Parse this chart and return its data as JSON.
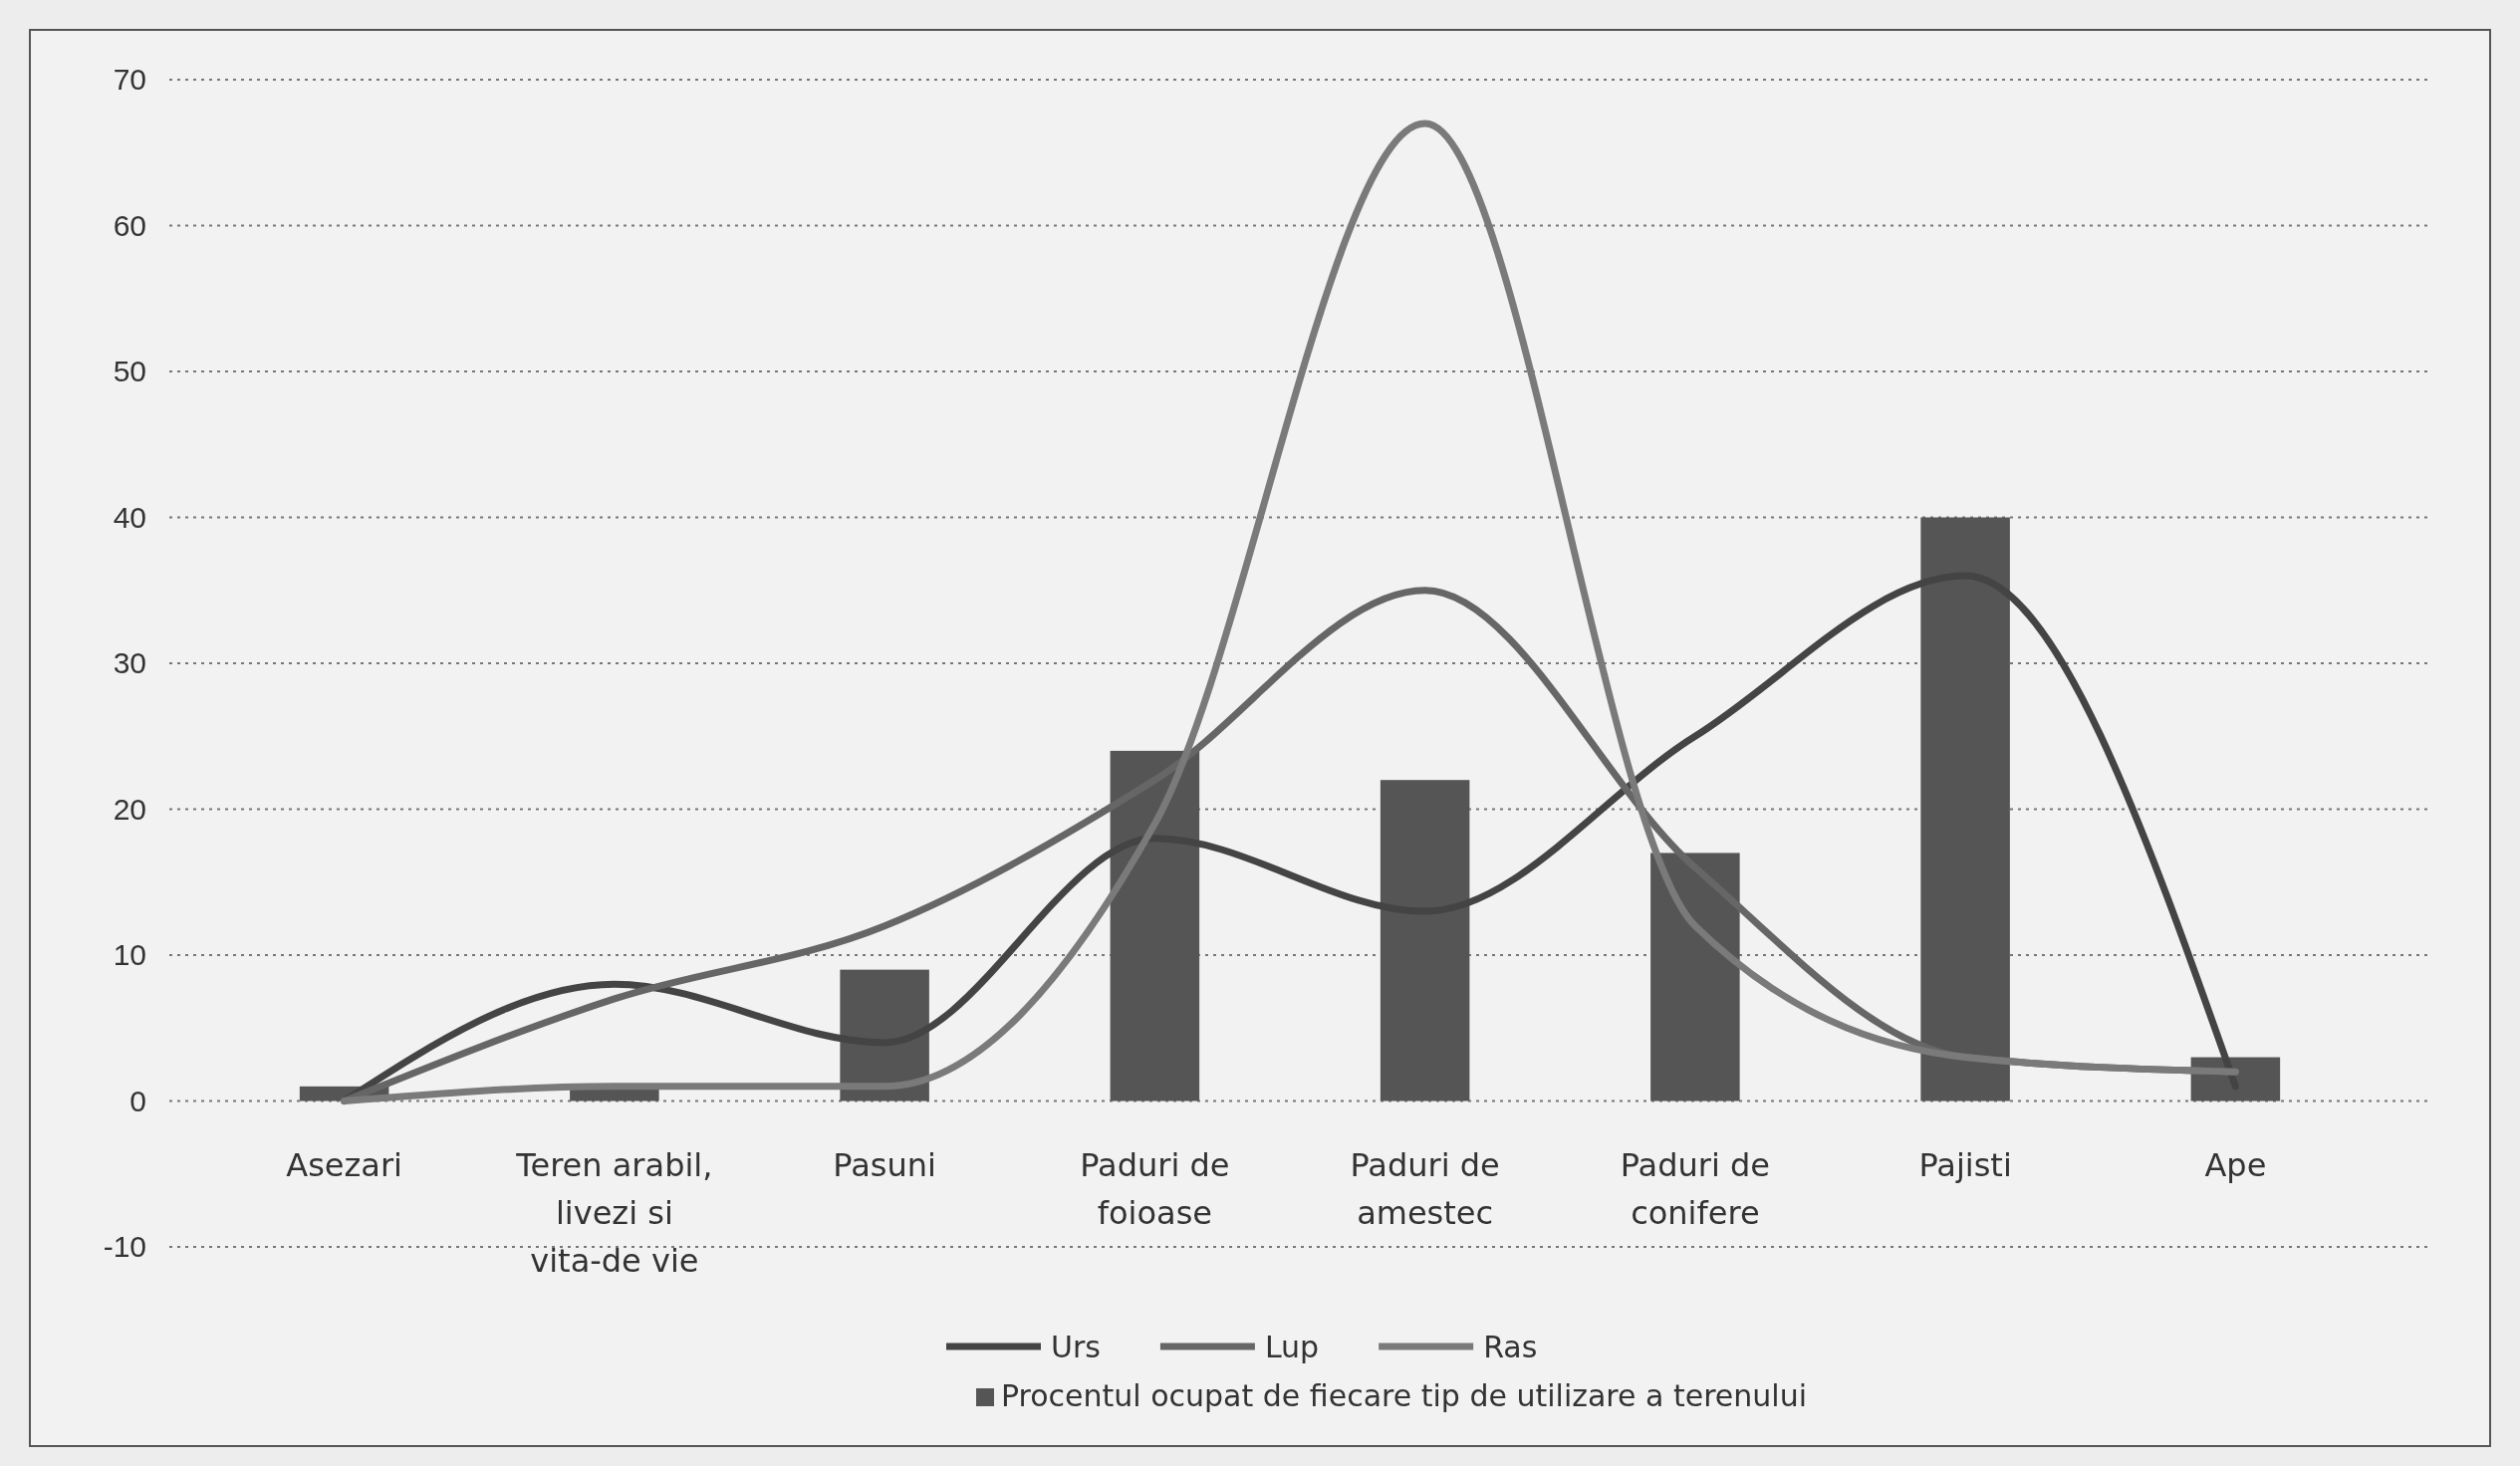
{
  "chart_data": {
    "type": "bar",
    "categories": [
      "Asezari",
      "Teren arabil, livezi si vita-de vie",
      "Pasuni",
      "Paduri de foioase",
      "Paduri de amestec",
      "Paduri de conifere",
      "Pajisti",
      "Ape"
    ],
    "series": [
      {
        "name": "Procentul ocupat de fiecare tip de utilizare a terenului",
        "color": "#555555",
        "values": [
          1,
          1,
          9,
          24,
          22,
          17,
          40,
          3
        ]
      },
      {
        "name": "Urs",
        "type": "line",
        "color": "#444444",
        "values": [
          0,
          8,
          4,
          18,
          13,
          25,
          36,
          1
        ]
      },
      {
        "name": "Lup",
        "type": "line",
        "color": "#666666",
        "values": [
          0,
          7,
          12,
          22,
          35,
          16,
          3,
          2
        ]
      },
      {
        "name": "Ras",
        "type": "line",
        "color": "#7a7a7a",
        "values": [
          0,
          1,
          1,
          19,
          67,
          12,
          3,
          2
        ]
      }
    ],
    "ylim": [
      -10,
      70
    ],
    "yticks": [
      -10,
      0,
      10,
      20,
      30,
      40,
      50,
      60,
      70
    ],
    "grid": "y",
    "legend": "bottom"
  }
}
